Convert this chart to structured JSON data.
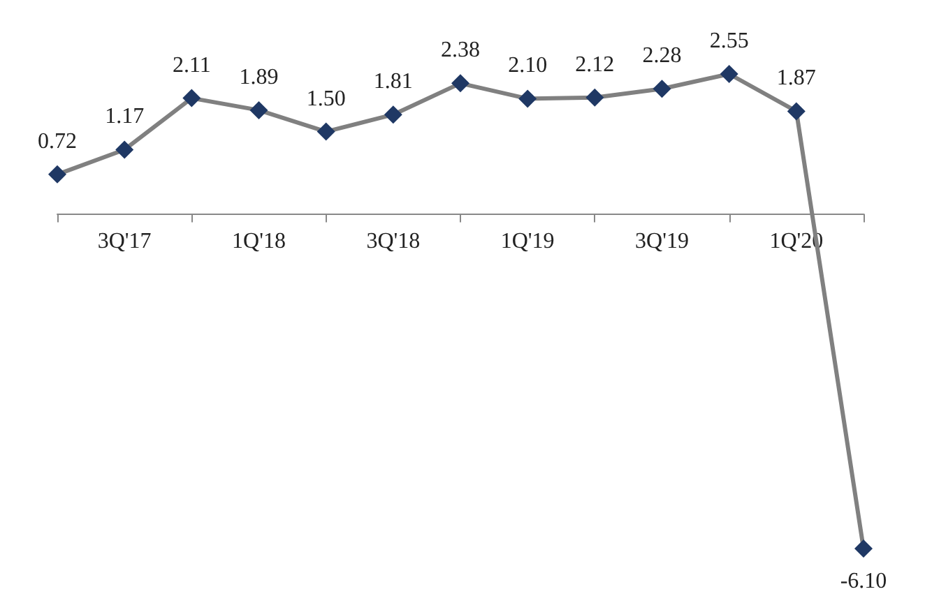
{
  "chart_data": {
    "type": "line",
    "categories": [
      null,
      "3Q'17",
      null,
      "1Q'18",
      null,
      "3Q'18",
      null,
      "1Q'19",
      null,
      "3Q'19",
      null,
      "1Q'20",
      null
    ],
    "series": [
      {
        "color": "#808080",
        "values": [
          0.72,
          1.17,
          2.11,
          1.89,
          1.5,
          1.81,
          2.38,
          2.1,
          2.12,
          2.28,
          2.55,
          1.87,
          -6.1
        ],
        "value_labels": [
          "0.72",
          "1.17",
          "2.11",
          "1.89",
          "1.50",
          "1.81",
          "2.38",
          "2.10",
          "2.12",
          "2.28",
          "2.55",
          "1.87",
          "-6.10"
        ]
      }
    ],
    "marker": "diamond",
    "grid": false
  }
}
